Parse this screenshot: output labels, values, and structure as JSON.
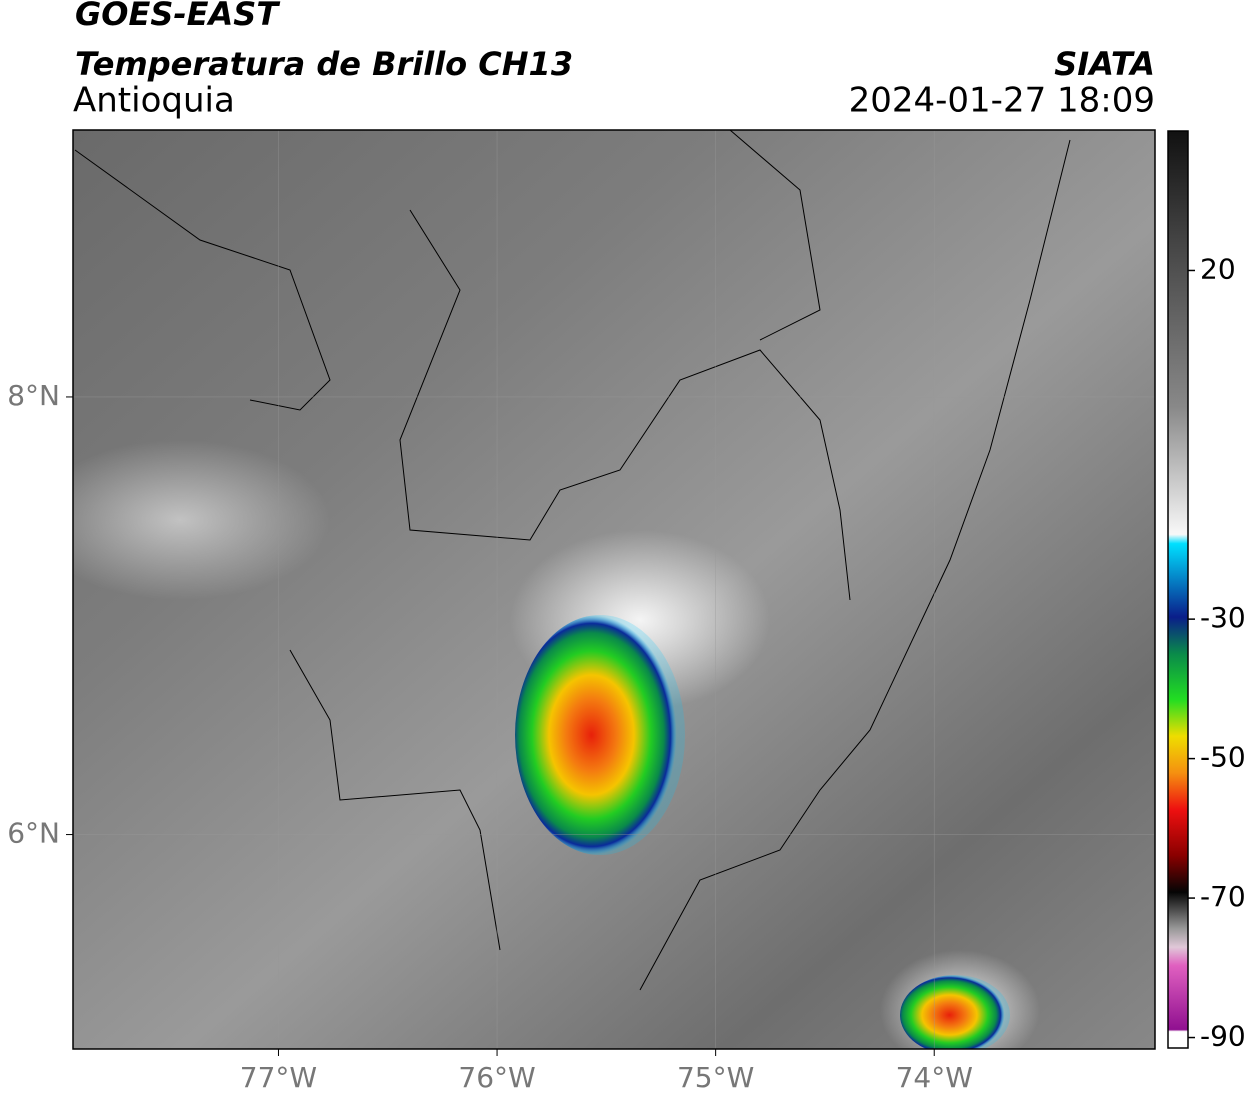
{
  "header": {
    "satellite": "GOES-EAST",
    "product": "Temperatura de Brillo CH13",
    "region": "Antioquia",
    "source": "SIATA",
    "datetime": "2024-01-27 18:09"
  },
  "map": {
    "lon_range": [
      -77.94,
      -72.99
    ],
    "lat_range": [
      5.02,
      9.22
    ],
    "lon_ticks": [
      {
        "value": -77,
        "label": "77°W"
      },
      {
        "value": -76,
        "label": "76°W"
      },
      {
        "value": -75,
        "label": "75°W"
      },
      {
        "value": -74,
        "label": "74°W"
      }
    ],
    "lat_ticks": [
      {
        "value": 8,
        "label": "8°N"
      },
      {
        "value": 6,
        "label": "6°N"
      }
    ]
  },
  "colorbar": {
    "range": [
      40,
      -91.5
    ],
    "ticks": [
      20,
      -30,
      -50,
      -70,
      -90
    ]
  }
}
